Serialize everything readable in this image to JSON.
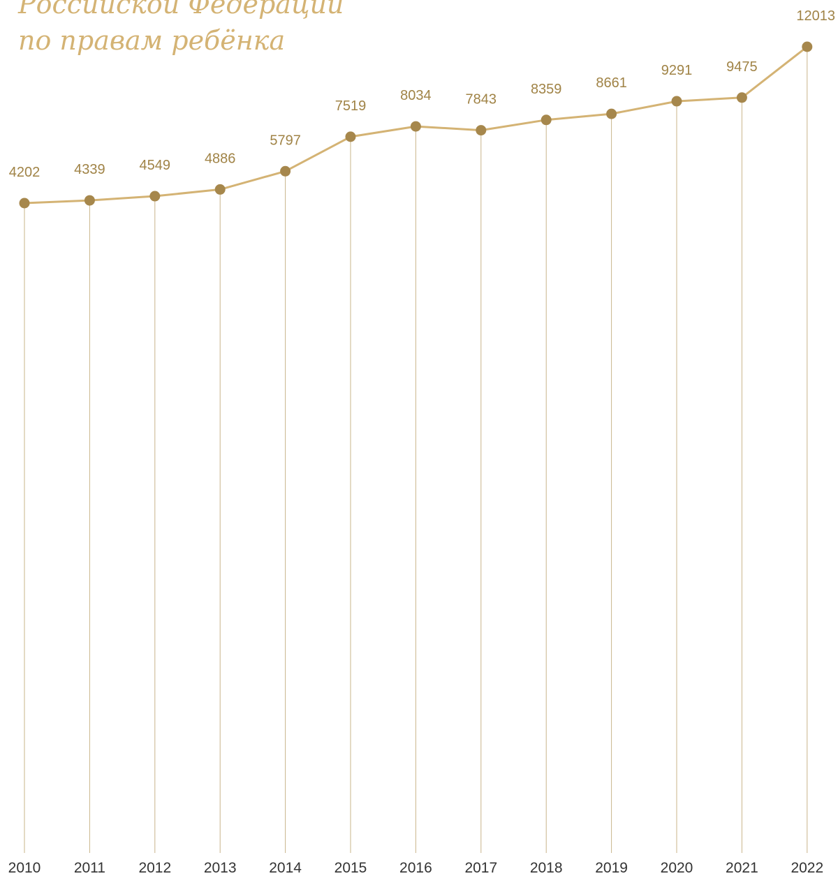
{
  "heading": {
    "line1": "Российской Федерации",
    "line2": "по правам ребёнка"
  },
  "colors": {
    "line": "#d4b374",
    "point": "#a6874c",
    "value_label": "#a08346",
    "drop_line": "#c9b48a",
    "year_label": "#333333"
  },
  "chart_data": {
    "type": "line",
    "x": [
      "2010",
      "2011",
      "2012",
      "2013",
      "2014",
      "2015",
      "2016",
      "2017",
      "2018",
      "2019",
      "2020",
      "2021",
      "2022"
    ],
    "series": [
      {
        "values": [
          4202,
          4339,
          4549,
          4886,
          5797,
          7519,
          8034,
          7843,
          8359,
          8661,
          9291,
          9475,
          12013
        ]
      }
    ],
    "data_labels": true,
    "grid": false
  }
}
